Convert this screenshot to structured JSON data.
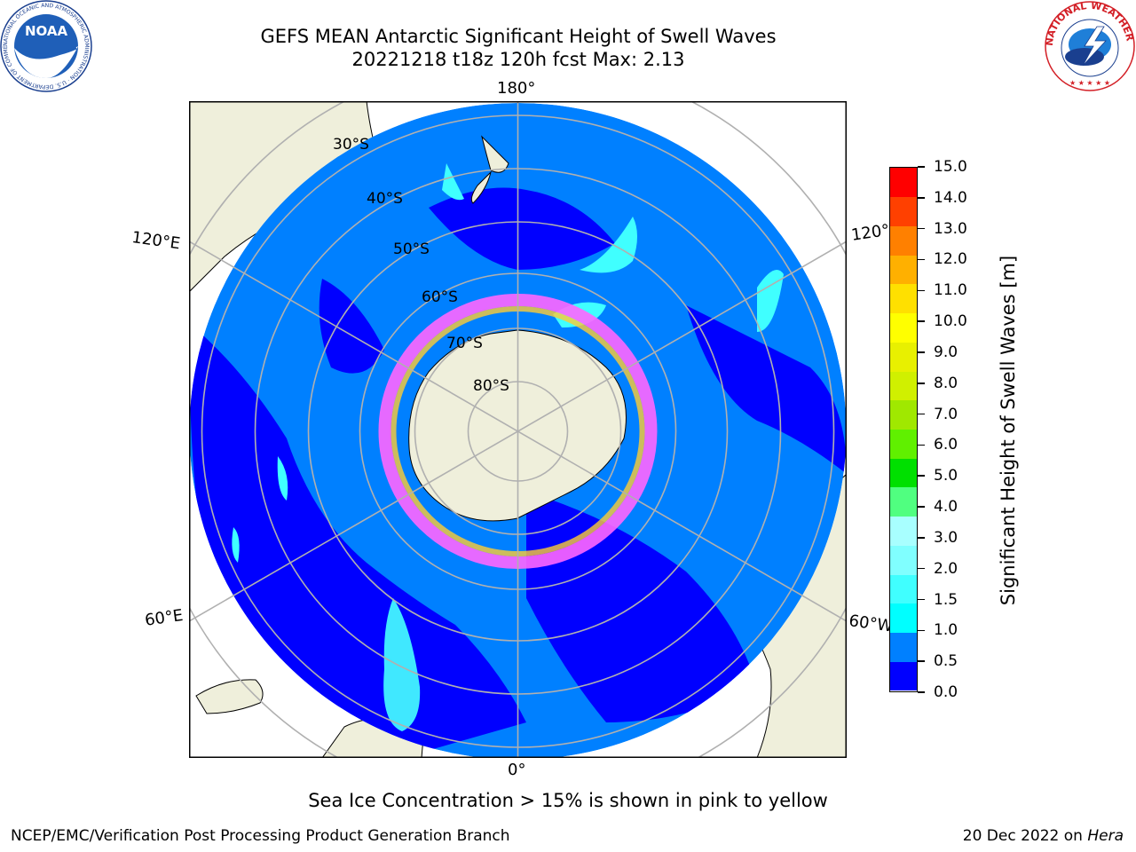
{
  "header": {
    "title_line1": "GEFS MEAN Antarctic Significant Height of Swell Waves",
    "title_line2": "20221218 t18z 120h fcst   Max: 2.13"
  },
  "logos": {
    "noaa_text": "NOAA",
    "noaa_ring_text": "NATIONAL OCEANIC AND ATMOSPHERIC ADMINISTRATION · U.S. DEPARTMENT OF COMMERCE",
    "nws_ring_text": "NATIONAL WEATHER SERVICE"
  },
  "map": {
    "projection": "south-polar-stereographic",
    "longitude_labels": {
      "top": "180°",
      "bottom": "0°",
      "upper_left": "120°E",
      "upper_right": "120°W",
      "lower_left": "60°E",
      "lower_right": "60°W"
    },
    "latitude_labels": [
      "30°S",
      "40°S",
      "50°S",
      "60°S",
      "70°S",
      "80°S"
    ],
    "colors": {
      "land": "#efefdb",
      "ocean_low": "#0000ff",
      "ocean_mid": "#0080ff",
      "ocean_high": "#00ffff",
      "grid": "#b0b0b0",
      "ice_pink": "#ff66ff",
      "ice_yellow": "#ffcc33"
    }
  },
  "colorbar": {
    "label": "Significant Height of Swell Waves [m]",
    "ticks": [
      "0.0",
      "0.5",
      "1.0",
      "1.5",
      "2.0",
      "3.0",
      "4.0",
      "5.0",
      "6.0",
      "7.0",
      "8.0",
      "9.0",
      "10.0",
      "11.0",
      "12.0",
      "13.0",
      "14.0",
      "15.0"
    ],
    "colors": [
      "#0000ff",
      "#0080ff",
      "#00ffff",
      "#40ffff",
      "#80ffff",
      "#a8ffff",
      "#50ff80",
      "#00e000",
      "#60f000",
      "#a0e800",
      "#d0f000",
      "#e8f000",
      "#ffff00",
      "#ffe000",
      "#ffb000",
      "#ff8000",
      "#ff4000",
      "#ff0000"
    ]
  },
  "footnote": "Sea Ice Concentration > 15% is shown in pink to yellow",
  "footer": {
    "left": "NCEP/EMC/Verification Post Processing Product Generation Branch",
    "right_prefix": "20 Dec 2022 on",
    "right_host": "Hera"
  }
}
